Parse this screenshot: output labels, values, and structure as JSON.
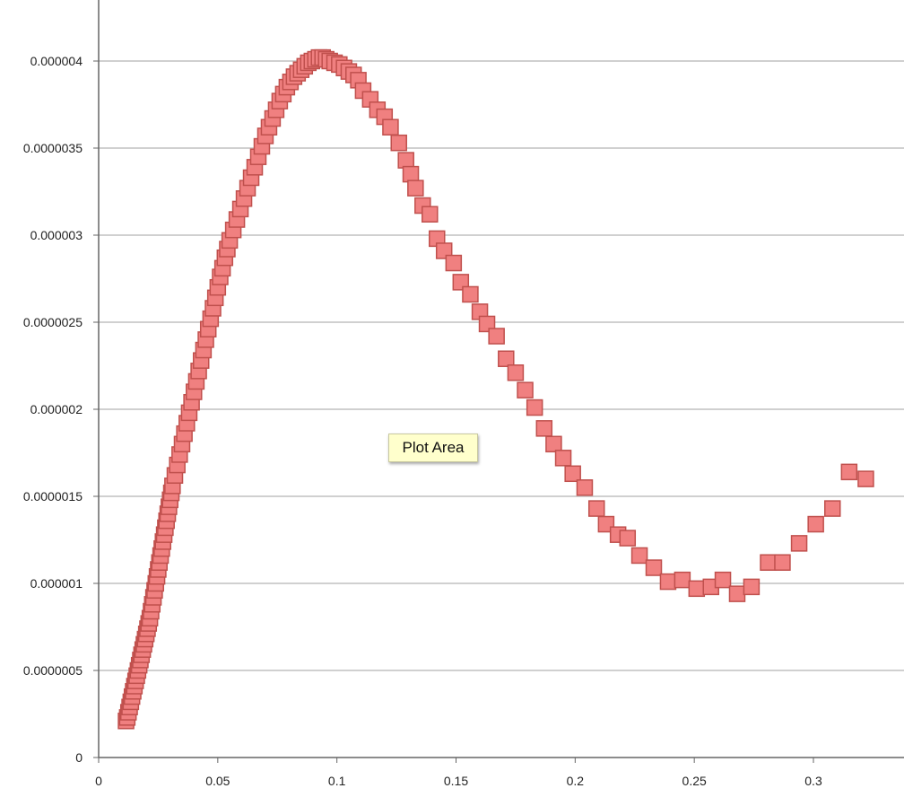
{
  "chart_data": {
    "type": "scatter",
    "title": "",
    "xlabel": "",
    "ylabel": "",
    "xlim": [
      0,
      0.33
    ],
    "ylim": [
      0,
      4.2e-06
    ],
    "grid": true,
    "legend": "none",
    "marker": "square",
    "colors": {
      "marker_fill": "#f08080",
      "marker_stroke": "#c0504d",
      "grid": "#d0d0d0"
    },
    "x_ticks": [
      {
        "value": 0,
        "label": "0"
      },
      {
        "value": 0.05,
        "label": "0.05"
      },
      {
        "value": 0.1,
        "label": "0.1"
      },
      {
        "value": 0.15,
        "label": "0.15"
      },
      {
        "value": 0.2,
        "label": "0.2"
      },
      {
        "value": 0.25,
        "label": "0.25"
      },
      {
        "value": 0.3,
        "label": "0.3"
      }
    ],
    "y_ticks": [
      {
        "value": 0,
        "label": "0"
      },
      {
        "value": 5e-07,
        "label": "0.0000005"
      },
      {
        "value": 1e-06,
        "label": "0.000001"
      },
      {
        "value": 1.5e-06,
        "label": "0.0000015"
      },
      {
        "value": 2e-06,
        "label": "0.000002"
      },
      {
        "value": 2.5e-06,
        "label": "0.0000025"
      },
      {
        "value": 3e-06,
        "label": "0.000003"
      },
      {
        "value": 3.5e-06,
        "label": "0.0000035"
      },
      {
        "value": 4e-06,
        "label": "0.000004"
      }
    ],
    "series": [
      {
        "points": [
          [
            0.0115,
            2.1e-07
          ],
          [
            0.012,
            2.3e-07
          ],
          [
            0.0125,
            2.6e-07
          ],
          [
            0.013,
            2.9e-07
          ],
          [
            0.0135,
            3.2e-07
          ],
          [
            0.014,
            3.5e-07
          ],
          [
            0.0145,
            3.8e-07
          ],
          [
            0.015,
            4.1e-07
          ],
          [
            0.0155,
            4.4e-07
          ],
          [
            0.016,
            4.7e-07
          ],
          [
            0.0165,
            5e-07
          ],
          [
            0.017,
            5.3e-07
          ],
          [
            0.0175,
            5.6e-07
          ],
          [
            0.018,
            5.9e-07
          ],
          [
            0.0185,
            6.2e-07
          ],
          [
            0.019,
            6.5e-07
          ],
          [
            0.0195,
            6.8e-07
          ],
          [
            0.02,
            7.1e-07
          ],
          [
            0.0205,
            7.4e-07
          ],
          [
            0.021,
            7.7e-07
          ],
          [
            0.0215,
            8e-07
          ],
          [
            0.022,
            8.4e-07
          ],
          [
            0.0225,
            8.8e-07
          ],
          [
            0.023,
            9.2e-07
          ],
          [
            0.0235,
            9.6e-07
          ],
          [
            0.024,
            1e-06
          ],
          [
            0.0245,
            1.04e-06
          ],
          [
            0.025,
            1.08e-06
          ],
          [
            0.0255,
            1.12e-06
          ],
          [
            0.026,
            1.16e-06
          ],
          [
            0.0265,
            1.2e-06
          ],
          [
            0.027,
            1.24e-06
          ],
          [
            0.0275,
            1.28e-06
          ],
          [
            0.028,
            1.32e-06
          ],
          [
            0.0285,
            1.36e-06
          ],
          [
            0.029,
            1.4e-06
          ],
          [
            0.0295,
            1.44e-06
          ],
          [
            0.03,
            1.48e-06
          ],
          [
            0.0305,
            1.52e-06
          ],
          [
            0.031,
            1.56e-06
          ],
          [
            0.032,
            1.62e-06
          ],
          [
            0.033,
            1.68e-06
          ],
          [
            0.034,
            1.74e-06
          ],
          [
            0.035,
            1.8e-06
          ],
          [
            0.036,
            1.86e-06
          ],
          [
            0.037,
            1.92e-06
          ],
          [
            0.038,
            1.98e-06
          ],
          [
            0.039,
            2.04e-06
          ],
          [
            0.04,
            2.1e-06
          ],
          [
            0.041,
            2.16e-06
          ],
          [
            0.042,
            2.22e-06
          ],
          [
            0.043,
            2.28e-06
          ],
          [
            0.044,
            2.34e-06
          ],
          [
            0.045,
            2.4e-06
          ],
          [
            0.046,
            2.46e-06
          ],
          [
            0.047,
            2.52e-06
          ],
          [
            0.048,
            2.58e-06
          ],
          [
            0.049,
            2.64e-06
          ],
          [
            0.05,
            2.7e-06
          ],
          [
            0.051,
            2.76e-06
          ],
          [
            0.052,
            2.81e-06
          ],
          [
            0.053,
            2.87e-06
          ],
          [
            0.054,
            2.92e-06
          ],
          [
            0.055,
            2.97e-06
          ],
          [
            0.0565,
            3.03e-06
          ],
          [
            0.058,
            3.09e-06
          ],
          [
            0.0595,
            3.15e-06
          ],
          [
            0.061,
            3.21e-06
          ],
          [
            0.0625,
            3.27e-06
          ],
          [
            0.064,
            3.33e-06
          ],
          [
            0.0655,
            3.39e-06
          ],
          [
            0.067,
            3.45e-06
          ],
          [
            0.0685,
            3.51e-06
          ],
          [
            0.07,
            3.57e-06
          ],
          [
            0.0715,
            3.62e-06
          ],
          [
            0.073,
            3.67e-06
          ],
          [
            0.0745,
            3.72e-06
          ],
          [
            0.076,
            3.77e-06
          ],
          [
            0.0775,
            3.81e-06
          ],
          [
            0.079,
            3.85e-06
          ],
          [
            0.0805,
            3.88e-06
          ],
          [
            0.082,
            3.91e-06
          ],
          [
            0.0835,
            3.93e-06
          ],
          [
            0.085,
            3.95e-06
          ],
          [
            0.0865,
            3.97e-06
          ],
          [
            0.088,
            3.99e-06
          ],
          [
            0.0895,
            4e-06
          ],
          [
            0.091,
            4.01e-06
          ],
          [
            0.0925,
            4.02e-06
          ],
          [
            0.094,
            4.02e-06
          ],
          [
            0.0955,
            4.01e-06
          ],
          [
            0.097,
            4e-06
          ],
          [
            0.099,
            3.99e-06
          ],
          [
            0.101,
            3.98e-06
          ],
          [
            0.103,
            3.96e-06
          ],
          [
            0.105,
            3.94e-06
          ],
          [
            0.107,
            3.92e-06
          ],
          [
            0.109,
            3.89e-06
          ],
          [
            0.111,
            3.83e-06
          ],
          [
            0.114,
            3.78e-06
          ],
          [
            0.117,
            3.72e-06
          ],
          [
            0.12,
            3.68e-06
          ],
          [
            0.1225,
            3.62e-06
          ],
          [
            0.126,
            3.53e-06
          ],
          [
            0.129,
            3.43e-06
          ],
          [
            0.131,
            3.35e-06
          ],
          [
            0.133,
            3.27e-06
          ],
          [
            0.136,
            3.17e-06
          ],
          [
            0.139,
            3.12e-06
          ],
          [
            0.142,
            2.98e-06
          ],
          [
            0.145,
            2.91e-06
          ],
          [
            0.149,
            2.84e-06
          ],
          [
            0.152,
            2.73e-06
          ],
          [
            0.156,
            2.66e-06
          ],
          [
            0.16,
            2.56e-06
          ],
          [
            0.163,
            2.49e-06
          ],
          [
            0.167,
            2.42e-06
          ],
          [
            0.171,
            2.29e-06
          ],
          [
            0.175,
            2.21e-06
          ],
          [
            0.179,
            2.11e-06
          ],
          [
            0.183,
            2.01e-06
          ],
          [
            0.187,
            1.89e-06
          ],
          [
            0.191,
            1.8e-06
          ],
          [
            0.195,
            1.72e-06
          ],
          [
            0.199,
            1.63e-06
          ],
          [
            0.204,
            1.55e-06
          ],
          [
            0.209,
            1.43e-06
          ],
          [
            0.213,
            1.34e-06
          ],
          [
            0.218,
            1.28e-06
          ],
          [
            0.222,
            1.26e-06
          ],
          [
            0.227,
            1.16e-06
          ],
          [
            0.233,
            1.09e-06
          ],
          [
            0.239,
            1.01e-06
          ],
          [
            0.245,
            1.02e-06
          ],
          [
            0.251,
            9.7e-07
          ],
          [
            0.257,
            9.8e-07
          ],
          [
            0.262,
            1.02e-06
          ],
          [
            0.268,
            9.4e-07
          ],
          [
            0.274,
            9.8e-07
          ],
          [
            0.281,
            1.12e-06
          ],
          [
            0.287,
            1.12e-06
          ],
          [
            0.294,
            1.23e-06
          ],
          [
            0.301,
            1.34e-06
          ],
          [
            0.308,
            1.43e-06
          ],
          [
            0.315,
            1.64e-06
          ],
          [
            0.322,
            1.6e-06
          ]
        ]
      }
    ]
  },
  "tooltip": {
    "text": "Plot Area"
  }
}
